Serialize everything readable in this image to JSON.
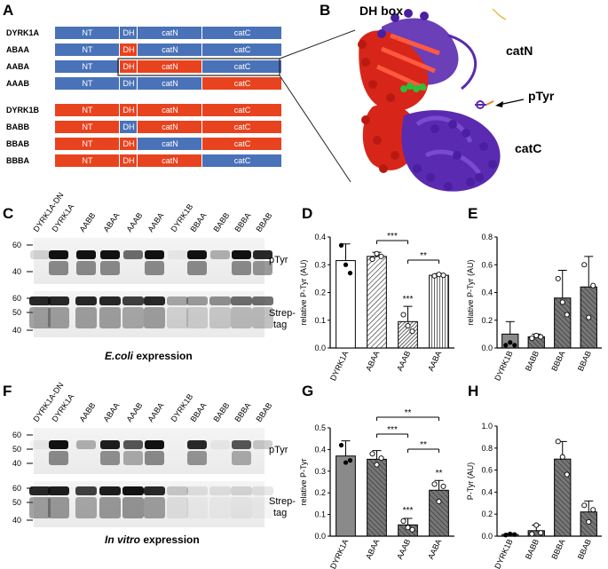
{
  "panel_letters": {
    "A": "A",
    "B": "B",
    "C": "C",
    "D": "D",
    "E": "E",
    "F": "F",
    "G": "G",
    "H": "H"
  },
  "colors": {
    "blue": "#4a72b8",
    "red": "#e8431f",
    "struct_red": "#d8251a",
    "struct_purple": "#5a2ab0",
    "green": "#2bbf3a"
  },
  "panel_a": {
    "group1": [
      {
        "name": "DYRK1A",
        "segments": [
          {
            "label": "NT",
            "color": "blue"
          },
          {
            "label": "DH",
            "color": "blue"
          },
          {
            "label": "catN",
            "color": "blue"
          },
          {
            "label": "catC",
            "color": "blue"
          }
        ]
      },
      {
        "name": "ABAA",
        "segments": [
          {
            "label": "NT",
            "color": "blue"
          },
          {
            "label": "DH",
            "color": "red"
          },
          {
            "label": "catN",
            "color": "blue"
          },
          {
            "label": "catC",
            "color": "blue"
          }
        ]
      },
      {
        "name": "AABA",
        "segments": [
          {
            "label": "NT",
            "color": "blue"
          },
          {
            "label": "DH",
            "color": "red"
          },
          {
            "label": "catN",
            "color": "red"
          },
          {
            "label": "catC",
            "color": "blue"
          }
        ]
      },
      {
        "name": "AAAB",
        "segments": [
          {
            "label": "NT",
            "color": "blue"
          },
          {
            "label": "DH",
            "color": "blue"
          },
          {
            "label": "catN",
            "color": "blue"
          },
          {
            "label": "catC",
            "color": "red"
          }
        ]
      }
    ],
    "group2": [
      {
        "name": "DYRK1B",
        "segments": [
          {
            "label": "NT",
            "color": "red"
          },
          {
            "label": "DH",
            "color": "red"
          },
          {
            "label": "catN",
            "color": "red"
          },
          {
            "label": "catC",
            "color": "red"
          }
        ]
      },
      {
        "name": "BABB",
        "segments": [
          {
            "label": "NT",
            "color": "red"
          },
          {
            "label": "DH",
            "color": "blue"
          },
          {
            "label": "catN",
            "color": "red"
          },
          {
            "label": "catC",
            "color": "red"
          }
        ]
      },
      {
        "name": "BBAB",
        "segments": [
          {
            "label": "NT",
            "color": "red"
          },
          {
            "label": "DH",
            "color": "red"
          },
          {
            "label": "catN",
            "color": "blue"
          },
          {
            "label": "catC",
            "color": "red"
          }
        ]
      },
      {
        "name": "BBBA",
        "segments": [
          {
            "label": "NT",
            "color": "red"
          },
          {
            "label": "DH",
            "color": "red"
          },
          {
            "label": "catN",
            "color": "red"
          },
          {
            "label": "catC",
            "color": "blue"
          }
        ]
      }
    ]
  },
  "panel_b": {
    "dh_box": "DH box",
    "catN": "catN",
    "pTyr": "pTyr",
    "catC": "catC"
  },
  "panel_c": {
    "lanes_left": [
      "DYRK1A-DN",
      "DYRK1A",
      "AABB",
      "ABAA",
      "AAAB",
      "AABA"
    ],
    "lanes_right": [
      "DYRK1B",
      "BBAA",
      "BABB",
      "BBBA",
      "BBAB"
    ],
    "mw_top": [
      "60",
      "40"
    ],
    "mw_bottom": [
      "60",
      "50",
      "40"
    ],
    "label_top": "pTyr",
    "label_bottom_1": "Strep-",
    "label_bottom_2": "tag",
    "caption_italic": "E.coli",
    "caption_rest": " expression"
  },
  "panel_f": {
    "lanes_left": [
      "DYRK1A-DN",
      "DYRK1A",
      "AABB",
      "ABAA",
      "AAAB",
      "AABA"
    ],
    "lanes_right": [
      "DYRK1B",
      "BBAA",
      "BABB",
      "BBBA",
      "BBAB"
    ],
    "mw_top": [
      "60",
      "50",
      "40"
    ],
    "mw_bottom": [
      "60",
      "50",
      "40"
    ],
    "label_top": "pTyr",
    "label_bottom_1": "Strep-",
    "label_bottom_2": "tag",
    "caption_italic": "In vitro",
    "caption_rest": " expression"
  },
  "chart_data": [
    {
      "panel": "D",
      "type": "bar",
      "ylabel": "relative P-Tyr (AU)",
      "ylim": [
        0,
        0.4
      ],
      "yticks": [
        "0.0",
        "0.1",
        "0.2",
        "0.3",
        "0.4"
      ],
      "categories": [
        "DYRK1A",
        "ABAA",
        "AAAB",
        "AABA"
      ],
      "values": [
        0.315,
        0.33,
        0.095,
        0.262
      ],
      "errors": [
        0.06,
        0.015,
        0.055,
        0.006
      ],
      "fill": [
        "white",
        "hatch",
        "dense",
        "vstripe"
      ],
      "points": [
        [
          0.37,
          0.3,
          0.27
        ],
        [
          0.32,
          0.34,
          0.33
        ],
        [
          0.12,
          0.08,
          0.06
        ],
        [
          0.26,
          0.265,
          0.262
        ]
      ],
      "sig_labels": [
        "***",
        "***",
        "**"
      ]
    },
    {
      "panel": "E",
      "type": "bar",
      "ylabel": "relative P-Tyr (AU)",
      "ylim": [
        0,
        0.8
      ],
      "yticks": [
        "0.0",
        "0.2",
        "0.4",
        "0.6",
        "0.8"
      ],
      "categories": [
        "DYRK1B",
        "BABB",
        "BBBA",
        "BBAB"
      ],
      "values": [
        0.1,
        0.08,
        0.36,
        0.44
      ],
      "errors": [
        0.09,
        0.02,
        0.2,
        0.22
      ],
      "points": [
        [
          0.02,
          0.04,
          0.02
        ],
        [
          0.07,
          0.09,
          0.08
        ],
        [
          0.5,
          0.33,
          0.24
        ],
        [
          0.6,
          0.22,
          0.45
        ]
      ]
    },
    {
      "panel": "G",
      "type": "bar",
      "ylabel": "relative P-Tyr",
      "ylim": [
        0,
        0.5
      ],
      "yticks": [
        "0.0",
        "0.1",
        "0.2",
        "0.3",
        "0.4",
        "0.5"
      ],
      "categories": [
        "DYRK1A",
        "ABAA",
        "AAAB",
        "AABA"
      ],
      "values": [
        0.37,
        0.355,
        0.052,
        0.212
      ],
      "errors": [
        0.07,
        0.04,
        0.03,
        0.045
      ],
      "points": [
        [
          0.42,
          0.34,
          0.35
        ],
        [
          0.38,
          0.33,
          0.36
        ],
        [
          0.07,
          0.04,
          0.03
        ],
        [
          0.24,
          0.16,
          0.23
        ]
      ],
      "sig_labels": [
        "**",
        "***",
        "**",
        "***",
        "**"
      ]
    },
    {
      "panel": "H",
      "type": "bar",
      "ylabel": "P-Tyr (AU)",
      "ylim": [
        0,
        1.0
      ],
      "yticks": [
        "0.0",
        "0.2",
        "0.4",
        "0.6",
        "0.8",
        "1.0"
      ],
      "categories": [
        "DYRK1B",
        "BABB",
        "BBBA",
        "BBAB"
      ],
      "values": [
        0.015,
        0.05,
        0.7,
        0.22
      ],
      "errors": [
        0.01,
        0.05,
        0.16,
        0.1
      ],
      "points": [
        [
          0.01,
          0.02,
          0.015
        ],
        [
          0.02,
          0.1,
          0.03
        ],
        [
          0.86,
          0.72,
          0.56
        ],
        [
          0.28,
          0.13,
          0.24
        ]
      ]
    }
  ]
}
